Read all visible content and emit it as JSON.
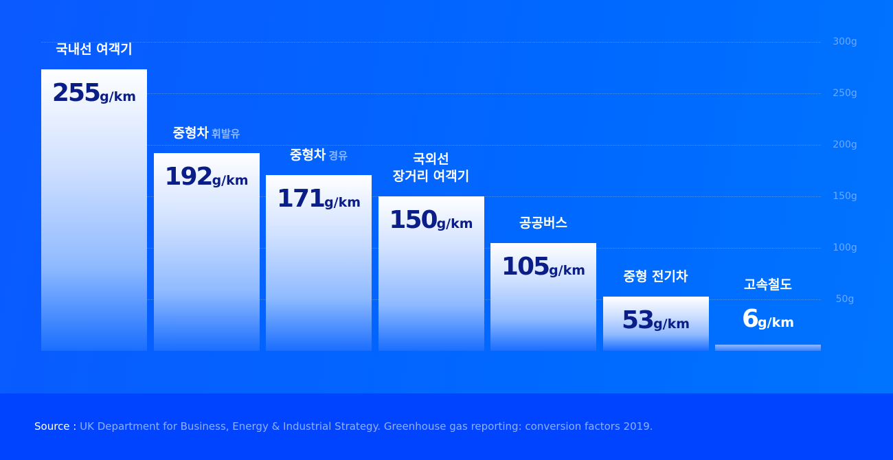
{
  "chart_data": {
    "type": "bar",
    "title": "",
    "unit": "g/km",
    "categories": [
      "국내선 여객기",
      "중형차 휘발유",
      "중형차 경유",
      "국외선 장거리 여객기",
      "공공버스",
      "중형 전기차",
      "고속철도"
    ],
    "labels": [
      {
        "main": [
          "국내선 여객기"
        ],
        "sub": ""
      },
      {
        "main": [
          "중형차"
        ],
        "sub": "휘발유"
      },
      {
        "main": [
          "중형차"
        ],
        "sub": "경유"
      },
      {
        "main": [
          "국외선",
          "장거리 여객기"
        ],
        "sub": ""
      },
      {
        "main": [
          "공공버스"
        ],
        "sub": ""
      },
      {
        "main": [
          "중형 전기차"
        ],
        "sub": ""
      },
      {
        "main": [
          "고속철도"
        ],
        "sub": ""
      }
    ],
    "values": [
      255,
      192,
      171,
      150,
      105,
      53,
      6
    ],
    "ylim": [
      0,
      300
    ],
    "yticks": [
      300,
      250,
      200,
      150,
      100,
      50
    ],
    "ytick_labels": [
      "300g",
      "250g",
      "200g",
      "150g",
      "100g",
      "50g"
    ],
    "grid": true,
    "colors": {
      "bar_top": "#ffffff",
      "bar_bottom": "#1a6eff",
      "value_text": "#0b1d86"
    }
  },
  "footer": {
    "source_label": "Source :",
    "source_text": " UK Department for Business, Energy & Industrial Strategy. Greenhouse gas reporting: conversion factors 2019."
  }
}
